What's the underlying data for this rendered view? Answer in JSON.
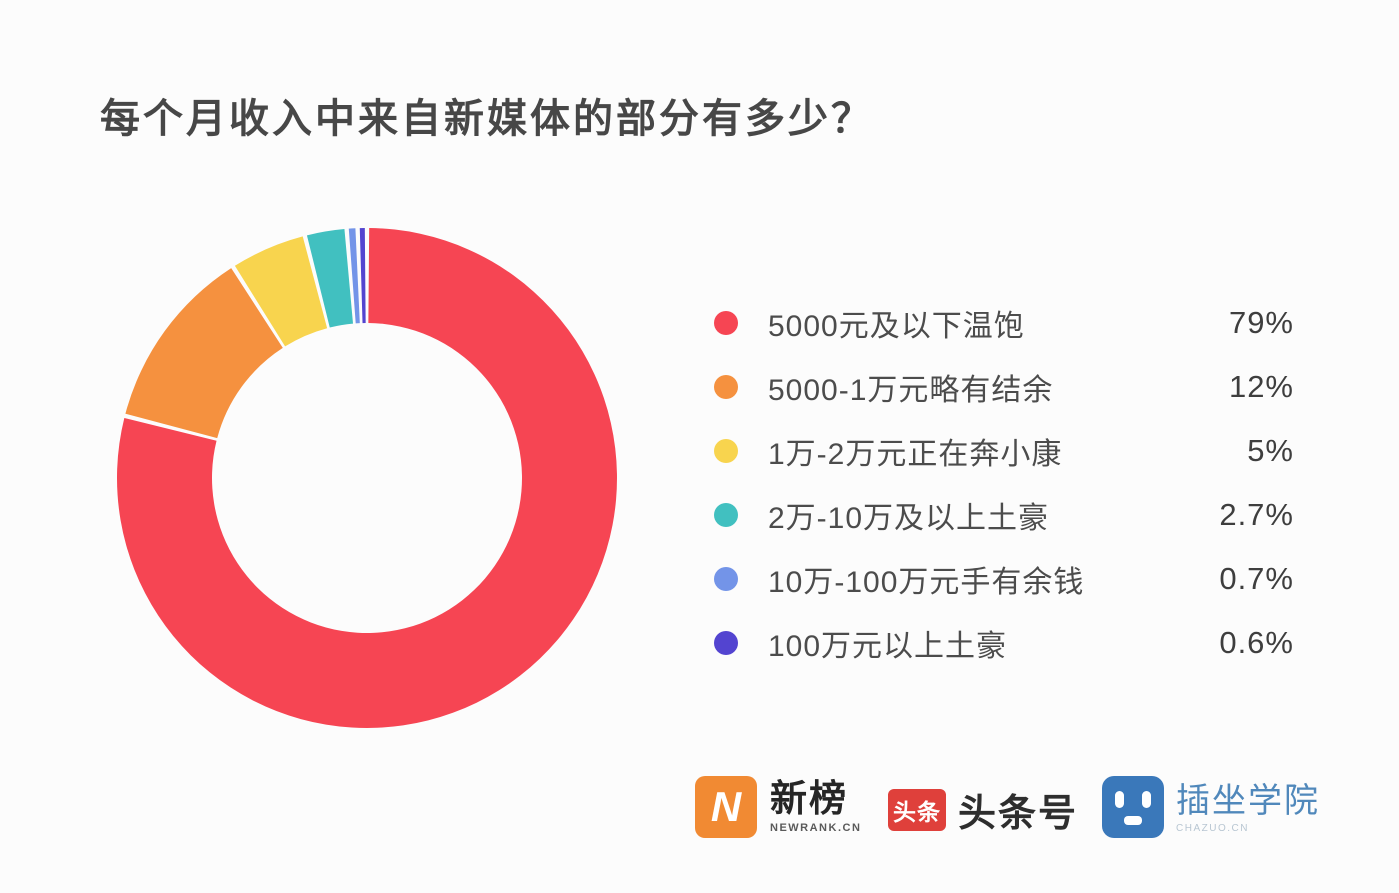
{
  "page": {
    "background": "#fcfcfc"
  },
  "title": "每个月收入中来自新媒体的部分有多少？",
  "chart_data": {
    "type": "pie",
    "variant": "donut",
    "title": "每个月收入中来自新媒体的部分有多少？",
    "categories": [
      "5000元及以下温饱",
      "5000-1万元略有结余",
      "1万-2万元正在奔小康",
      "2万-10万及以上土豪",
      "10万-100万元手有余钱",
      "100万元以上土豪"
    ],
    "values": [
      79,
      12,
      5,
      2.7,
      0.7,
      0.6
    ],
    "value_labels": [
      "79%",
      "12%",
      "5%",
      "2.7%",
      "0.7%",
      "0.6%"
    ],
    "colors": [
      "#f64553",
      "#f5913f",
      "#f8d44e",
      "#41c0c0",
      "#7394e8",
      "#5344d0"
    ],
    "unit": "%",
    "start_angle_deg": 0,
    "direction": "clockwise",
    "inner_radius_ratio": 0.62,
    "segment_gap_deg": 1.0,
    "legend_position": "right",
    "data_labels": "in legend"
  },
  "legend": {
    "items": [
      {
        "label": "5000元及以下温饱",
        "value": "79%",
        "color": "#f64553"
      },
      {
        "label": "5000-1万元略有结余",
        "value": "12%",
        "color": "#f5913f"
      },
      {
        "label": "1万-2万元正在奔小康",
        "value": "5%",
        "color": "#f8d44e"
      },
      {
        "label": "2万-10万及以上土豪",
        "value": "2.7%",
        "color": "#41c0c0"
      },
      {
        "label": "10万-100万元手有余钱",
        "value": "0.7%",
        "color": "#7394e8"
      },
      {
        "label": "100万元以上土豪",
        "value": "0.6%",
        "color": "#5344d0"
      }
    ]
  },
  "footer": {
    "newrank": {
      "icon_letter": "N",
      "name": "新榜",
      "subtext": "NEWRANK.CN",
      "icon_bg": "#f18a33"
    },
    "toutiao": {
      "badge_text": "头条",
      "name": "头条号",
      "badge_bg": "#df403b"
    },
    "chazuo": {
      "name": "插坐学院",
      "subtext": "CHAZUO.CN",
      "icon_bg": "#3a78ba"
    }
  }
}
